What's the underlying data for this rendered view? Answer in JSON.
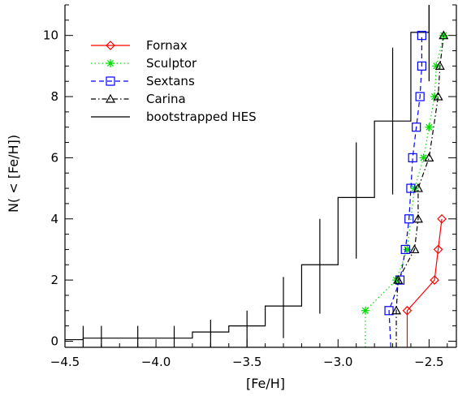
{
  "chart_data": {
    "type": "line",
    "title": "",
    "xlabel": "[Fe/H]",
    "ylabel": "N( < [Fe/H])",
    "xlim": [
      -4.5,
      -2.35
    ],
    "ylim": [
      -0.2,
      11
    ],
    "x_ticks": [
      -4.5,
      -4.0,
      -3.5,
      -3.0,
      -2.5
    ],
    "x_tick_labels": [
      "−4.5",
      "−4.0",
      "−3.5",
      "−3.0",
      "−2.5"
    ],
    "y_ticks": [
      0,
      2,
      4,
      6,
      8,
      10
    ],
    "y_tick_labels": [
      "0",
      "2",
      "4",
      "6",
      "8",
      "10"
    ],
    "legend": {
      "position": "top-left"
    },
    "series": [
      {
        "name": "Fornax",
        "color": "#ff0000",
        "dash": "solid",
        "marker": "diamond",
        "x": [
          -2.62,
          -2.62,
          -2.47,
          -2.45,
          -2.43
        ],
        "y": [
          -0.2,
          1,
          2,
          3,
          4
        ]
      },
      {
        "name": "Sculptor",
        "color": "#00dd00",
        "dash": "dotted",
        "marker": "asterisk",
        "x": [
          -2.85,
          -2.85,
          -2.68,
          -2.62,
          -2.58,
          -2.53,
          -2.5,
          -2.47,
          -2.46,
          -2.42
        ],
        "y": [
          -0.2,
          1,
          2,
          3,
          5,
          6,
          7,
          8,
          9,
          10
        ]
      },
      {
        "name": "Sextans",
        "color": "#0000ff",
        "dash": "dashed",
        "marker": "square",
        "x": [
          -2.71,
          -2.72,
          -2.66,
          -2.63,
          -2.61,
          -2.6,
          -2.59,
          -2.57,
          -2.55,
          -2.54,
          -2.54
        ],
        "y": [
          -0.2,
          1,
          2,
          3,
          4,
          5,
          6,
          7,
          8,
          9,
          10
        ]
      },
      {
        "name": "Carina",
        "color": "#000000",
        "dash": "dashdot",
        "marker": "triangle",
        "x": [
          -2.68,
          -2.68,
          -2.67,
          -2.58,
          -2.56,
          -2.56,
          -2.5,
          -2.45,
          -2.44,
          -2.42
        ],
        "y": [
          -0.2,
          1,
          2,
          3,
          4,
          5,
          6,
          8,
          9,
          10
        ]
      }
    ],
    "histogram": {
      "name": "bootstrapped HES",
      "color": "#000000",
      "edges": [
        -4.5,
        -4.4,
        -3.8,
        -3.6,
        -3.4,
        -3.2,
        -3.0,
        -2.8,
        -2.6,
        -2.5
      ],
      "values": [
        0.05,
        0.1,
        0.3,
        0.5,
        1.15,
        2.5,
        4.7,
        7.2,
        10.1
      ],
      "errorbars": [
        {
          "x": -4.4,
          "low": -0.2,
          "high": 0.5
        },
        {
          "x": -4.3,
          "low": -0.2,
          "high": 0.5
        },
        {
          "x": -4.1,
          "low": -0.2,
          "high": 0.5
        },
        {
          "x": -3.9,
          "low": -0.2,
          "high": 0.5
        },
        {
          "x": -3.7,
          "low": -0.2,
          "high": 0.7
        },
        {
          "x": -3.5,
          "low": -0.2,
          "high": 1.0
        },
        {
          "x": -3.3,
          "low": 0.1,
          "high": 2.1
        },
        {
          "x": -3.1,
          "low": 0.9,
          "high": 4.0
        },
        {
          "x": -2.9,
          "low": 2.7,
          "high": 6.5
        },
        {
          "x": -2.7,
          "low": 4.8,
          "high": 9.6
        },
        {
          "x": -2.5,
          "low": 8.5,
          "high": 11.0
        }
      ]
    }
  }
}
